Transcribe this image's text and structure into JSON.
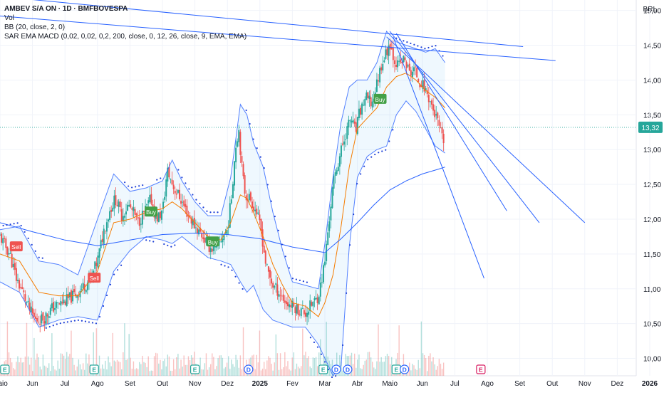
{
  "header": {
    "title": "AMBEV S/A ON · 1D · BMFBOVESPA",
    "vol_label": "Vol",
    "bb_label": "BB (20, close, 2, 0)",
    "indicators_label": "SAR EMA MACD (0,02, 0,02, 0,2, 200, close, 0, 12, 26, close, 9, EMA, EMA)",
    "currency": "BRL"
  },
  "colors": {
    "up": "#26a69a",
    "down": "#ef5350",
    "band": "#2962ff",
    "ema_short": "#f57c00",
    "trendline": "#2962ff",
    "price_line": "#26a69a",
    "price_tag_bg": "#26a69a",
    "sell_marker": "#ef5350",
    "buy_marker": "#43a047",
    "dividend_marker": "#2962ff",
    "earnings_marker": "#26a69a",
    "future_earnings_marker": "#d81b60"
  },
  "chart_data": {
    "type": "candlestick",
    "title": "AMBEV S/A ON · 1D · BMFBOVESPA",
    "y_axis": {
      "range": [
        9.75,
        15.15
      ],
      "ticks": [
        "15,00",
        "14,50",
        "14,00",
        "13,50",
        "13,00",
        "12,50",
        "12,00",
        "11,50",
        "11,00",
        "10,50",
        "10,00"
      ],
      "tick_values": [
        15.0,
        14.5,
        14.0,
        13.5,
        13.0,
        12.5,
        12.0,
        11.5,
        11.0,
        10.5,
        10.0
      ],
      "position": "right"
    },
    "x_axis": {
      "ticks": [
        "Maio",
        "Jun",
        "Jul",
        "Ago",
        "Set",
        "Out",
        "Nov",
        "Dez",
        "2025",
        "Fev",
        "Mar",
        "Abr",
        "Maio",
        "Jun",
        "Jul",
        "Ago",
        "Set",
        "Out",
        "Nov",
        "Dez",
        "2026"
      ],
      "tick_months": [
        0,
        1,
        2,
        3,
        4,
        5,
        6,
        7,
        8,
        9,
        10,
        11,
        12,
        13,
        14,
        15,
        16,
        17,
        18,
        19,
        20
      ],
      "bold_ticks": [
        "2025",
        "2026"
      ]
    },
    "last_price": 13.32,
    "last_price_label": "13,32",
    "close_path": [
      [
        0.0,
        11.75
      ],
      [
        0.3,
        11.5
      ],
      [
        0.5,
        11.15
      ],
      [
        0.7,
        10.95
      ],
      [
        0.9,
        10.7
      ],
      [
        1.1,
        10.55
      ],
      [
        1.35,
        10.58
      ],
      [
        1.6,
        10.72
      ],
      [
        1.9,
        10.8
      ],
      [
        2.1,
        10.85
      ],
      [
        2.4,
        10.95
      ],
      [
        2.6,
        11.05
      ],
      [
        2.8,
        11.15
      ],
      [
        3.0,
        11.4
      ],
      [
        3.2,
        11.85
      ],
      [
        3.4,
        12.15
      ],
      [
        3.55,
        12.3
      ],
      [
        3.75,
        12.05
      ],
      [
        3.95,
        12.2
      ],
      [
        4.1,
        12.1
      ],
      [
        4.25,
        11.95
      ],
      [
        4.5,
        12.15
      ],
      [
        4.65,
        12.3
      ],
      [
        4.8,
        12.0
      ],
      [
        5.0,
        12.1
      ],
      [
        5.15,
        12.7
      ],
      [
        5.35,
        12.45
      ],
      [
        5.55,
        12.3
      ],
      [
        5.75,
        12.1
      ],
      [
        6.0,
        11.9
      ],
      [
        6.25,
        11.75
      ],
      [
        6.45,
        11.6
      ],
      [
        6.65,
        11.55
      ],
      [
        6.85,
        11.75
      ],
      [
        7.0,
        11.85
      ],
      [
        7.12,
        12.3
      ],
      [
        7.25,
        13.05
      ],
      [
        7.35,
        13.3
      ],
      [
        7.45,
        12.7
      ],
      [
        7.55,
        12.35
      ],
      [
        7.7,
        12.3
      ],
      [
        7.9,
        12.1
      ],
      [
        8.05,
        11.8
      ],
      [
        8.2,
        11.3
      ],
      [
        8.4,
        11.05
      ],
      [
        8.6,
        10.95
      ],
      [
        8.8,
        10.8
      ],
      [
        9.0,
        10.75
      ],
      [
        9.2,
        10.7
      ],
      [
        9.4,
        10.65
      ],
      [
        9.6,
        10.78
      ],
      [
        9.75,
        10.85
      ],
      [
        9.85,
        11.0
      ],
      [
        10.0,
        11.4
      ],
      [
        10.1,
        11.85
      ],
      [
        10.25,
        12.5
      ],
      [
        10.45,
        12.9
      ],
      [
        10.65,
        13.25
      ],
      [
        10.8,
        13.45
      ],
      [
        10.95,
        13.25
      ],
      [
        11.05,
        13.5
      ],
      [
        11.25,
        13.75
      ],
      [
        11.45,
        13.65
      ],
      [
        11.6,
        13.95
      ],
      [
        11.75,
        14.25
      ],
      [
        11.9,
        14.4
      ],
      [
        12.0,
        14.55
      ],
      [
        12.1,
        14.35
      ],
      [
        12.25,
        14.2
      ],
      [
        12.45,
        14.3
      ],
      [
        12.6,
        14.1
      ],
      [
        12.75,
        14.15
      ],
      [
        12.9,
        14.0
      ],
      [
        13.05,
        13.9
      ],
      [
        13.2,
        13.75
      ],
      [
        13.35,
        13.55
      ],
      [
        13.5,
        13.35
      ],
      [
        13.6,
        13.15
      ],
      [
        13.7,
        13.1
      ]
    ],
    "candle_count": 300,
    "bollinger_upper": [
      [
        0.0,
        11.85
      ],
      [
        0.6,
        11.9
      ],
      [
        1.2,
        11.4
      ],
      [
        1.8,
        11.35
      ],
      [
        2.4,
        11.2
      ],
      [
        3.0,
        12.0
      ],
      [
        3.5,
        12.65
      ],
      [
        4.0,
        12.4
      ],
      [
        4.5,
        12.45
      ],
      [
        5.0,
        12.55
      ],
      [
        5.3,
        12.85
      ],
      [
        5.6,
        12.55
      ],
      [
        6.0,
        12.25
      ],
      [
        6.4,
        12.05
      ],
      [
        6.8,
        12.05
      ],
      [
        7.1,
        12.6
      ],
      [
        7.4,
        13.65
      ],
      [
        7.6,
        13.5
      ],
      [
        7.8,
        13.1
      ],
      [
        8.1,
        12.75
      ],
      [
        8.4,
        12.1
      ],
      [
        8.7,
        11.55
      ],
      [
        9.0,
        11.1
      ],
      [
        9.4,
        11.05
      ],
      [
        9.8,
        11.0
      ],
      [
        10.0,
        11.65
      ],
      [
        10.25,
        12.6
      ],
      [
        10.5,
        13.4
      ],
      [
        10.75,
        13.9
      ],
      [
        11.0,
        14.0
      ],
      [
        11.3,
        14.0
      ],
      [
        11.6,
        14.25
      ],
      [
        11.9,
        14.7
      ],
      [
        12.2,
        14.55
      ],
      [
        12.5,
        14.5
      ],
      [
        12.8,
        14.45
      ],
      [
        13.1,
        14.4
      ],
      [
        13.4,
        14.45
      ],
      [
        13.7,
        14.25
      ]
    ],
    "bollinger_lower": [
      [
        0.0,
        11.1
      ],
      [
        0.6,
        10.95
      ],
      [
        1.2,
        10.45
      ],
      [
        1.8,
        10.55
      ],
      [
        2.4,
        10.6
      ],
      [
        3.0,
        10.55
      ],
      [
        3.5,
        11.25
      ],
      [
        4.0,
        11.55
      ],
      [
        4.5,
        11.75
      ],
      [
        5.0,
        11.7
      ],
      [
        5.3,
        11.65
      ],
      [
        5.6,
        11.75
      ],
      [
        6.0,
        11.6
      ],
      [
        6.4,
        11.45
      ],
      [
        6.8,
        11.4
      ],
      [
        7.1,
        11.35
      ],
      [
        7.4,
        11.1
      ],
      [
        7.6,
        10.95
      ],
      [
        7.8,
        11.05
      ],
      [
        8.1,
        10.7
      ],
      [
        8.4,
        10.55
      ],
      [
        8.7,
        10.5
      ],
      [
        9.0,
        10.45
      ],
      [
        9.4,
        10.45
      ],
      [
        9.8,
        10.2
      ],
      [
        10.0,
        10.0
      ],
      [
        10.25,
        9.75
      ],
      [
        10.5,
        9.9
      ],
      [
        10.75,
        11.6
      ],
      [
        11.0,
        12.6
      ],
      [
        11.3,
        12.9
      ],
      [
        11.6,
        13.0
      ],
      [
        11.9,
        13.05
      ],
      [
        12.2,
        13.5
      ],
      [
        12.5,
        13.7
      ],
      [
        12.8,
        13.55
      ],
      [
        13.1,
        13.3
      ],
      [
        13.4,
        13.05
      ],
      [
        13.7,
        12.95
      ]
    ],
    "bollinger_basis": [
      [
        0.0,
        11.5
      ],
      [
        0.6,
        11.4
      ],
      [
        1.2,
        10.95
      ],
      [
        1.8,
        10.9
      ],
      [
        2.4,
        10.9
      ],
      [
        3.0,
        11.25
      ],
      [
        3.5,
        11.95
      ],
      [
        4.0,
        12.0
      ],
      [
        4.5,
        12.1
      ],
      [
        5.0,
        12.15
      ],
      [
        5.3,
        12.25
      ],
      [
        5.6,
        12.15
      ],
      [
        6.0,
        11.95
      ],
      [
        6.4,
        11.75
      ],
      [
        6.8,
        11.7
      ],
      [
        7.1,
        11.95
      ],
      [
        7.4,
        12.35
      ],
      [
        7.6,
        12.3
      ],
      [
        7.8,
        12.1
      ],
      [
        8.1,
        11.75
      ],
      [
        8.4,
        11.35
      ],
      [
        8.7,
        11.05
      ],
      [
        9.0,
        10.8
      ],
      [
        9.4,
        10.75
      ],
      [
        9.8,
        10.6
      ],
      [
        10.0,
        10.8
      ],
      [
        10.25,
        11.2
      ],
      [
        10.5,
        11.9
      ],
      [
        10.75,
        12.75
      ],
      [
        11.0,
        13.3
      ],
      [
        11.3,
        13.45
      ],
      [
        11.6,
        13.6
      ],
      [
        11.9,
        13.9
      ],
      [
        12.2,
        14.05
      ],
      [
        12.5,
        14.1
      ],
      [
        12.8,
        14.0
      ],
      [
        13.1,
        13.85
      ],
      [
        13.4,
        13.75
      ],
      [
        13.7,
        13.6
      ]
    ],
    "ema_200": [
      [
        0.0,
        11.95
      ],
      [
        1.0,
        11.82
      ],
      [
        2.0,
        11.7
      ],
      [
        3.0,
        11.62
      ],
      [
        4.0,
        11.7
      ],
      [
        5.0,
        11.78
      ],
      [
        6.0,
        11.8
      ],
      [
        7.0,
        11.78
      ],
      [
        8.0,
        11.72
      ],
      [
        9.0,
        11.6
      ],
      [
        10.0,
        11.52
      ],
      [
        10.5,
        11.72
      ],
      [
        11.0,
        11.95
      ],
      [
        11.5,
        12.2
      ],
      [
        12.0,
        12.42
      ],
      [
        12.5,
        12.55
      ],
      [
        13.0,
        12.65
      ],
      [
        13.5,
        12.72
      ],
      [
        13.7,
        12.75
      ]
    ],
    "trendlines": [
      [
        [
          0.0,
          15.2
        ],
        [
          16.1,
          14.48
        ]
      ],
      [
        [
          0.0,
          14.92
        ],
        [
          17.1,
          14.28
        ]
      ],
      [
        [
          12.2,
          14.67
        ],
        [
          15.6,
          12.12
        ]
      ],
      [
        [
          12.0,
          14.7
        ],
        [
          16.6,
          11.95
        ]
      ],
      [
        [
          12.1,
          14.62
        ],
        [
          14.9,
          11.15
        ]
      ],
      [
        [
          11.9,
          14.62
        ],
        [
          18.0,
          11.95
        ]
      ]
    ],
    "signals": [
      {
        "label": "Sell",
        "type": "sell",
        "month": 0.5,
        "price": 11.6
      },
      {
        "label": "Sell",
        "type": "sell",
        "month": 2.9,
        "price": 11.15
      },
      {
        "label": "Buy",
        "type": "buy",
        "month": 4.65,
        "price": 12.1
      },
      {
        "label": "Buy",
        "type": "buy",
        "month": 6.55,
        "price": 11.67
      },
      {
        "label": "Buy",
        "type": "buy",
        "month": 11.7,
        "price": 13.72
      }
    ],
    "event_markers": [
      {
        "label": "E",
        "type": "earnings",
        "month": 0.15
      },
      {
        "label": "E",
        "type": "earnings",
        "month": 2.9
      },
      {
        "label": "E",
        "type": "earnings",
        "month": 6.0
      },
      {
        "label": "D",
        "type": "dividend",
        "month": 7.65
      },
      {
        "label": "E",
        "type": "earnings",
        "month": 9.95
      },
      {
        "label": "D",
        "type": "dividend",
        "month": 10.35
      },
      {
        "label": "D",
        "type": "dividend",
        "month": 10.7
      },
      {
        "label": "E",
        "type": "earnings",
        "month": 12.2
      },
      {
        "label": "D",
        "type": "dividend",
        "month": 12.45
      },
      {
        "label": "E",
        "type": "future-earnings",
        "month": 14.8
      }
    ],
    "grid": true,
    "legend": "top-left"
  }
}
